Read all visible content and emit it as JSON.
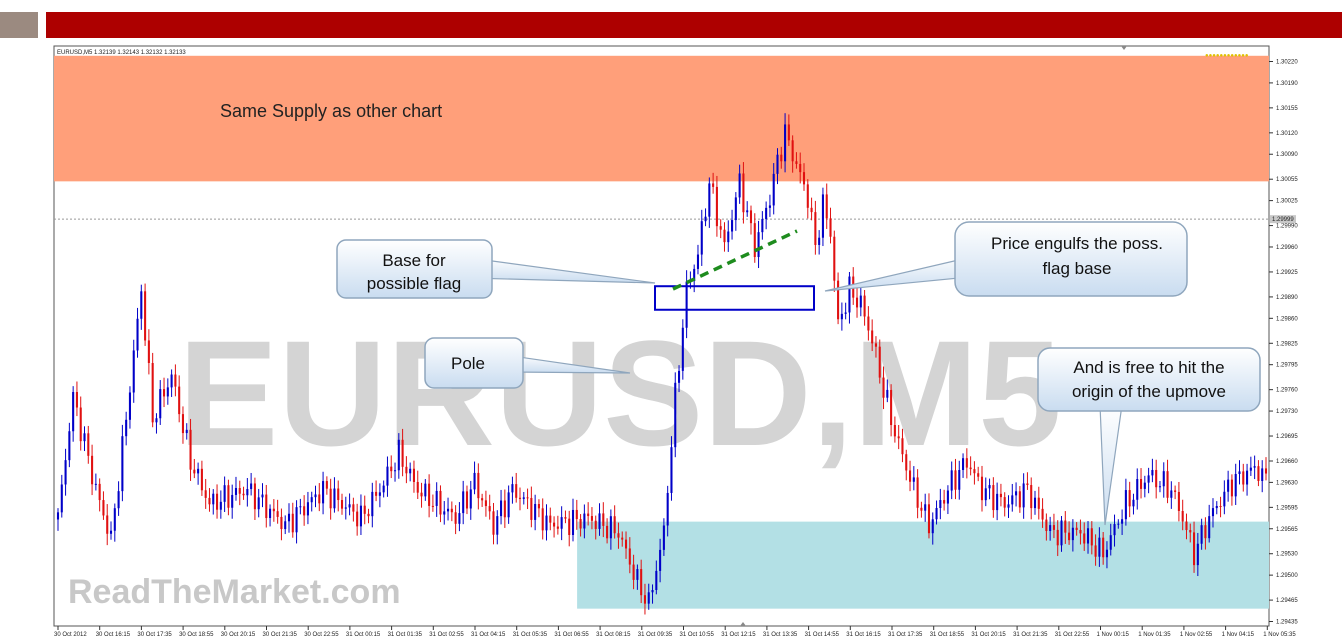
{
  "chart_data": {
    "type": "candlestick",
    "symbol_header": "EURUSD,M5  1.32139 1.32143 1.32132 1.32133",
    "watermark": "EURUSD,M5",
    "brand_watermark": "ReadTheMarket.com",
    "ylim": [
      1.2945,
      1.3023
    ],
    "price_ticks": [
      "1.30220",
      "1.30190",
      "1.30155",
      "1.30120",
      "1.30090",
      "1.30055",
      "1.30025",
      "1.29990",
      "1.29960",
      "1.29925",
      "1.29890",
      "1.29860",
      "1.29825",
      "1.29795",
      "1.29760",
      "1.29730",
      "1.29695",
      "1.29660",
      "1.29630",
      "1.29595",
      "1.29565",
      "1.29530",
      "1.29500",
      "1.29465",
      "1.29435"
    ],
    "price_tick_values": [
      1.3022,
      1.3019,
      1.30155,
      1.3012,
      1.3009,
      1.30055,
      1.30025,
      1.2999,
      1.2996,
      1.29925,
      1.2989,
      1.2986,
      1.29825,
      1.29795,
      1.2976,
      1.2973,
      1.29695,
      1.2966,
      1.2963,
      1.29595,
      1.29565,
      1.2953,
      1.295,
      1.29465,
      1.29435
    ],
    "time_ticks": [
      "30 Oct 2012",
      "30 Oct 16:15",
      "30 Oct 17:35",
      "30 Oct 18:55",
      "30 Oct 20:15",
      "30 Oct 21:35",
      "30 Oct 22:55",
      "31 Oct 00:15",
      "31 Oct 01:35",
      "31 Oct 02:55",
      "31 Oct 04:15",
      "31 Oct 05:35",
      "31 Oct 06:55",
      "31 Oct 08:15",
      "31 Oct 09:35",
      "31 Oct 10:55",
      "31 Oct 12:15",
      "31 Oct 13:35",
      "31 Oct 14:55",
      "31 Oct 16:15",
      "31 Oct 17:35",
      "31 Oct 18:55",
      "31 Oct 20:15",
      "31 Oct 21:35",
      "31 Oct 22:55",
      "1 Nov 00:15",
      "1 Nov 01:35",
      "1 Nov 02:55",
      "1 Nov 04:15",
      "1 Nov 05:35"
    ],
    "bid_line_value": 1.29999,
    "bid_label": "1.29999",
    "anchors": [
      [
        0,
        1.2958
      ],
      [
        4,
        1.2975
      ],
      [
        10,
        1.2962
      ],
      [
        14,
        1.2955
      ],
      [
        18,
        1.2972
      ],
      [
        22,
        1.299
      ],
      [
        25,
        1.2972
      ],
      [
        30,
        1.2978
      ],
      [
        35,
        1.2966
      ],
      [
        40,
        1.296
      ],
      [
        50,
        1.2962
      ],
      [
        60,
        1.2957
      ],
      [
        70,
        1.2962
      ],
      [
        80,
        1.2958
      ],
      [
        85,
        1.2962
      ],
      [
        90,
        1.2967
      ],
      [
        95,
        1.2962
      ],
      [
        105,
        1.2958
      ],
      [
        110,
        1.2963
      ],
      [
        115,
        1.2957
      ],
      [
        120,
        1.2962
      ],
      [
        130,
        1.2957
      ],
      [
        140,
        1.2958
      ],
      [
        148,
        1.2956
      ],
      [
        153,
        1.2949
      ],
      [
        156,
        1.2946
      ],
      [
        160,
        1.2956
      ],
      [
        163,
        1.2975
      ],
      [
        166,
        1.299
      ],
      [
        169,
        1.2995
      ],
      [
        172,
        1.3005
      ],
      [
        176,
        1.2996
      ],
      [
        180,
        1.3005
      ],
      [
        184,
        1.2996
      ],
      [
        188,
        1.3003
      ],
      [
        190,
        1.3008
      ],
      [
        192,
        1.3012
      ],
      [
        194,
        1.3009
      ],
      [
        198,
        1.3003
      ],
      [
        200,
        1.2996
      ],
      [
        202,
        1.3002
      ],
      [
        204,
        1.2998
      ],
      [
        206,
        1.2985
      ],
      [
        209,
        1.299
      ],
      [
        212,
        1.2988
      ],
      [
        215,
        1.2983
      ],
      [
        218,
        1.2976
      ],
      [
        221,
        1.297
      ],
      [
        226,
        1.2962
      ],
      [
        230,
        1.2957
      ],
      [
        236,
        1.2963
      ],
      [
        240,
        1.2966
      ],
      [
        244,
        1.2962
      ],
      [
        250,
        1.296
      ],
      [
        256,
        1.2962
      ],
      [
        262,
        1.2956
      ],
      [
        270,
        1.2956
      ],
      [
        276,
        1.2953
      ],
      [
        282,
        1.296
      ],
      [
        288,
        1.2964
      ],
      [
        294,
        1.2962
      ],
      [
        297,
        1.2958
      ],
      [
        300,
        1.2953
      ],
      [
        304,
        1.2958
      ],
      [
        310,
        1.2963
      ],
      [
        316,
        1.2965
      ],
      [
        320,
        1.2963
      ]
    ],
    "candle_count": 320
  },
  "zones": {
    "supply_label": "Same Supply as other chart",
    "supply_top": 1.30228,
    "supply_bottom": 1.30052,
    "demand_top": 1.29575,
    "demand_bottom": 1.29453,
    "demand_start_time": "31 Oct 08:15"
  },
  "callouts": {
    "base": [
      "Base for",
      "possible flag"
    ],
    "engulf": [
      "Price engulfs the poss.",
      "flag base"
    ],
    "pole": [
      "Pole"
    ],
    "free": [
      "And is free to hit the",
      "origin of the upmove"
    ]
  },
  "colors": {
    "banner": "#ad0000",
    "supply_zone": "#ff9f7a",
    "demand_zone": "#b3e0e5",
    "bull_candle": "#0000c8",
    "bear_candle": "#e01010",
    "flag_line": "#1e8c1e",
    "base_box": "#0000c8"
  }
}
